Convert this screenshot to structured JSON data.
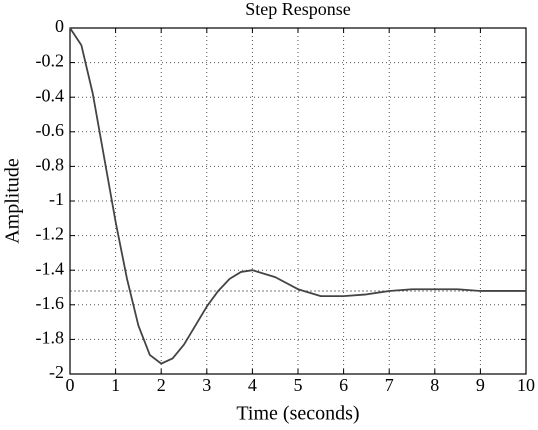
{
  "chart_data": {
    "type": "line",
    "title": "Step Response",
    "x_label": "Time (seconds)",
    "y_label": "Amplitude",
    "x": [
      0,
      0.25,
      0.5,
      0.75,
      1,
      1.25,
      1.5,
      1.75,
      2,
      2.25,
      2.5,
      2.75,
      3,
      3.25,
      3.5,
      3.75,
      4,
      4.5,
      5,
      5.5,
      6,
      6.5,
      7,
      7.5,
      8,
      8.5,
      9,
      9.5,
      10
    ],
    "series": [
      {
        "name": "Step Response",
        "color": "#444444",
        "values": [
          0,
          -0.1,
          -0.38,
          -0.75,
          -1.12,
          -1.45,
          -1.72,
          -1.89,
          -1.94,
          -1.91,
          -1.83,
          -1.72,
          -1.61,
          -1.52,
          -1.45,
          -1.41,
          -1.4,
          -1.44,
          -1.51,
          -1.55,
          -1.55,
          -1.54,
          -1.52,
          -1.51,
          -1.51,
          -1.51,
          -1.52,
          -1.52,
          -1.52
        ]
      }
    ],
    "steady_state": -1.52,
    "xlim": [
      0,
      10
    ],
    "ylim": [
      -2,
      0
    ],
    "xticks": [
      0,
      1,
      2,
      3,
      4,
      5,
      6,
      7,
      8,
      9,
      10
    ],
    "yticks": [
      0,
      -0.2,
      -0.4,
      -0.6,
      -0.8,
      -1,
      -1.2,
      -1.4,
      -1.6,
      -1.8,
      -2
    ],
    "grid": true
  }
}
